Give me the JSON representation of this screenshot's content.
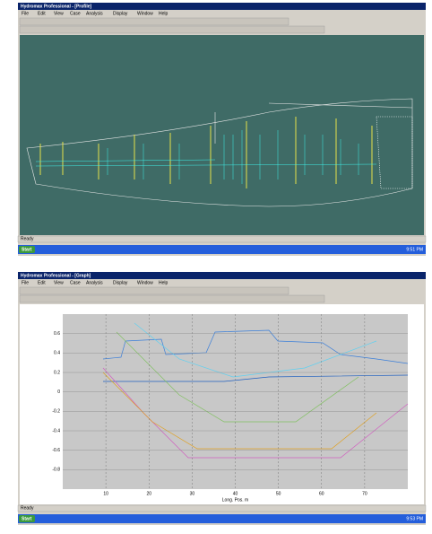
{
  "windows": [
    {
      "title": "Hydromax Professional - [Profile]",
      "menu": [
        "File",
        "Edit",
        "View",
        "Case",
        "Analysis",
        "Display",
        "Window",
        "Help"
      ],
      "status": "Ready",
      "taskbar": {
        "start": "Start",
        "clock": "9:51 PM"
      }
    },
    {
      "title": "Hydromax Professional - [Graph]",
      "menu": [
        "File",
        "Edit",
        "View",
        "Case",
        "Analysis",
        "Display",
        "Window",
        "Help"
      ],
      "status": "Ready",
      "taskbar": {
        "start": "Start",
        "clock": "9:53 PM"
      }
    }
  ],
  "graph": {
    "x_label": "Long. Pos. m",
    "xlim": [
      0,
      80
    ],
    "xticks": [
      10,
      20,
      30,
      40,
      50,
      60,
      70
    ],
    "ylim": [
      -1,
      0.8
    ],
    "yticks": [
      0.6,
      0.4,
      0.2,
      0,
      -0.2,
      -0.4,
      -0.6,
      -0.8
    ]
  }
}
